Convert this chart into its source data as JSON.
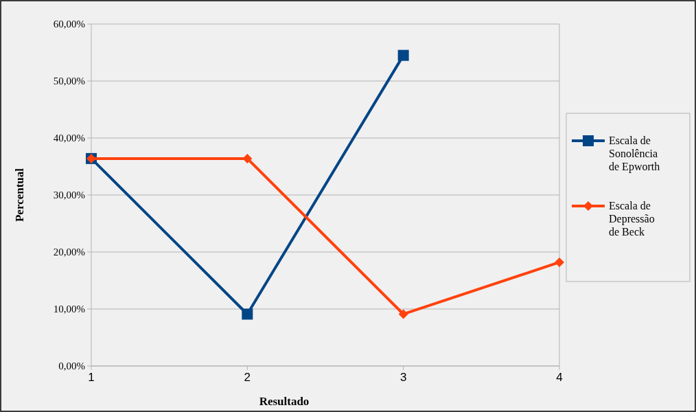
{
  "chart_data": {
    "type": "line",
    "xlabel": "Resultado",
    "ylabel": "Percentual",
    "x": [
      1,
      2,
      3,
      4
    ],
    "xlim": [
      1,
      4
    ],
    "xticks": [
      1,
      2,
      3,
      4
    ],
    "ylim": [
      0,
      60
    ],
    "yticks": [
      {
        "value": 0,
        "label": "0,00%"
      },
      {
        "value": 10,
        "label": "10,00%"
      },
      {
        "value": 20,
        "label": "20,00%"
      },
      {
        "value": 30,
        "label": "30,00%"
      },
      {
        "value": 40,
        "label": "40,00%"
      },
      {
        "value": 50,
        "label": "50,00%"
      },
      {
        "value": 60,
        "label": "60,00%"
      }
    ],
    "grid": "y",
    "legend": "right",
    "series": [
      {
        "name": "Escala de Sonolência de Epworth",
        "color": "#004586",
        "marker": "square",
        "values": [
          36.4,
          9.1,
          54.5,
          null
        ]
      },
      {
        "name": "Escala de Depressão de Beck",
        "color": "#ff420e",
        "marker": "diamond",
        "values": [
          36.4,
          36.4,
          9.1,
          18.2
        ]
      }
    ]
  }
}
